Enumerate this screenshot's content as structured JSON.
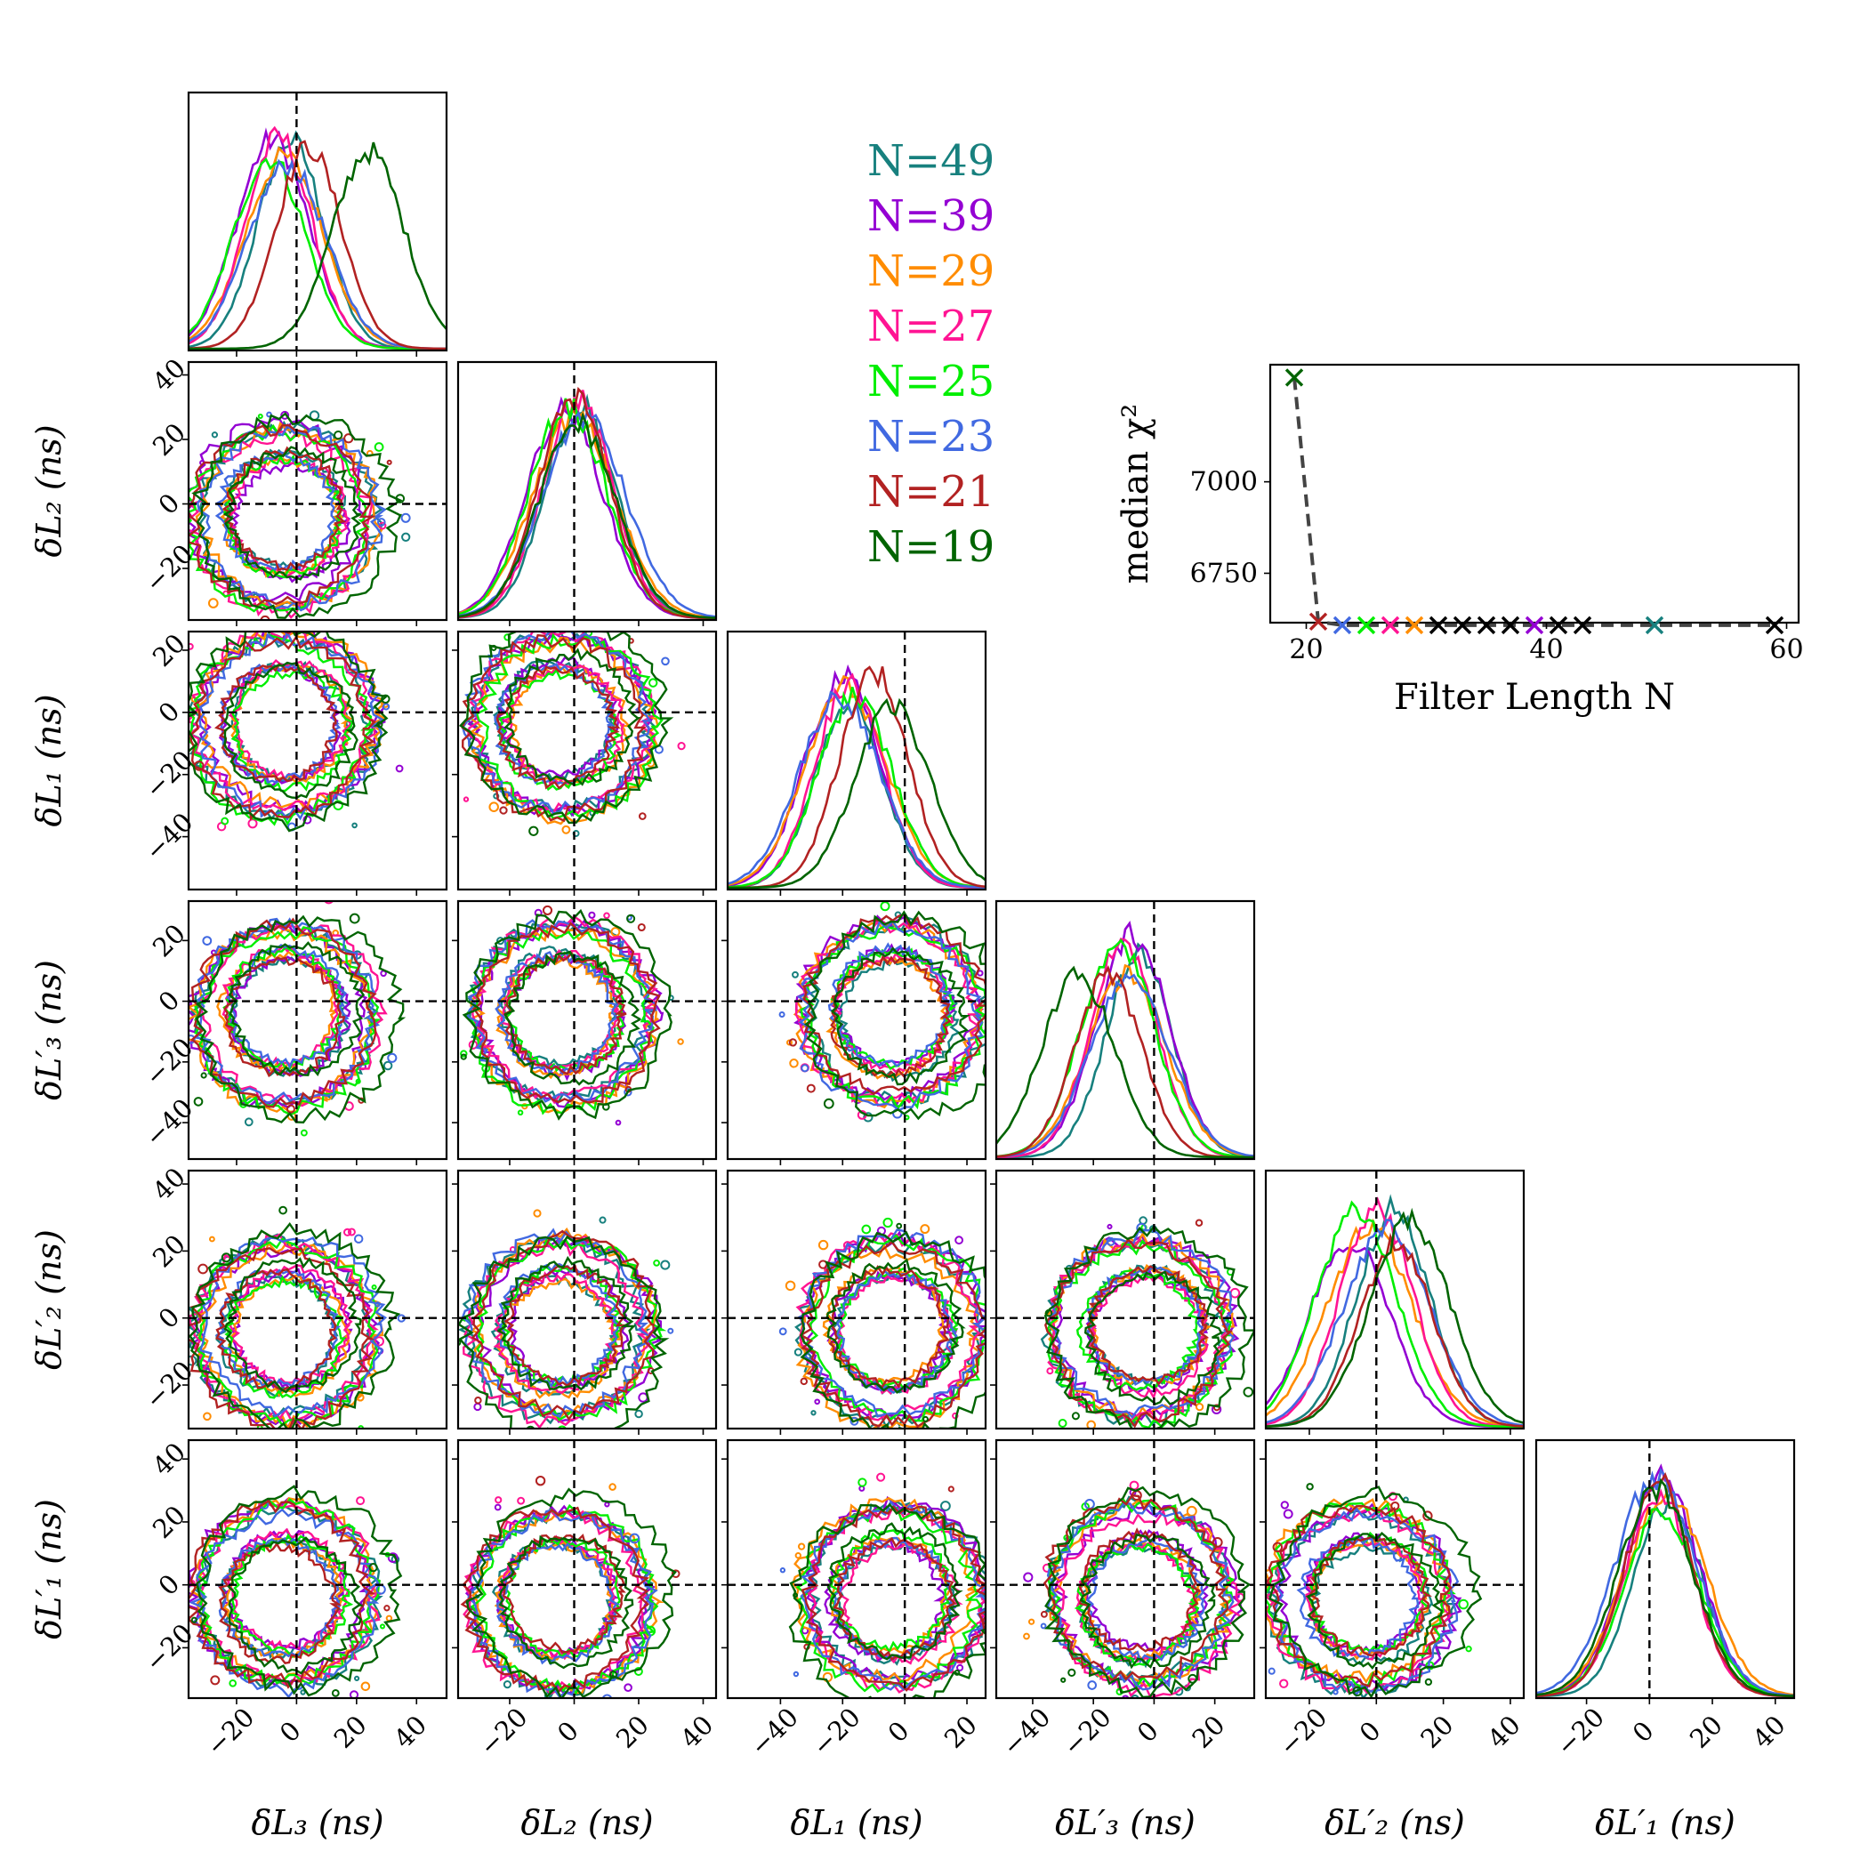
{
  "chart_data": [
    {
      "type": "corner",
      "parameters": [
        "δL3",
        "δL2",
        "δL1",
        "δL'3",
        "δL'2",
        "δL'1"
      ],
      "axis_labels": [
        "δL₃ (ns)",
        "δL₂ (ns)",
        "δL₁ (ns)",
        "δL′₃ (ns)",
        "δL′₂ (ns)",
        "δL′₁ (ns)"
      ],
      "ranges": [
        [
          -36,
          50
        ],
        [
          -36,
          44
        ],
        [
          -57,
          26
        ],
        [
          -52,
          33
        ],
        [
          -33,
          44
        ],
        [
          -36,
          46
        ]
      ],
      "ticks": [
        [
          -20,
          0,
          20,
          40
        ],
        [
          -20,
          0,
          20,
          40
        ],
        [
          -40,
          -20,
          0,
          20
        ],
        [
          -40,
          -20,
          0,
          20
        ],
        [
          -20,
          0,
          20,
          40
        ],
        [
          -20,
          0,
          20,
          40
        ]
      ],
      "truth": [
        0,
        0,
        0,
        0,
        0,
        0
      ],
      "series": [
        {
          "name": "N=49",
          "color": "#17807e"
        },
        {
          "name": "N=39",
          "color": "#9400d3"
        },
        {
          "name": "N=29",
          "color": "#ff8c00"
        },
        {
          "name": "N=27",
          "color": "#ff1493"
        },
        {
          "name": "N=25",
          "color": "#00ee00"
        },
        {
          "name": "N=23",
          "color": "#4169e1"
        },
        {
          "name": "N=21",
          "color": "#b22222"
        },
        {
          "name": "N=19",
          "color": "#006400"
        }
      ],
      "marginal_peaks": [
        [
          -2,
          -8,
          -4,
          -6,
          -9,
          -3,
          4,
          24
        ],
        [
          2,
          -3,
          0,
          1,
          -2,
          3,
          0,
          1
        ],
        [
          -18,
          -20,
          -19,
          -18,
          -16,
          -21,
          -10,
          -4
        ],
        [
          -5,
          -7,
          -9,
          -10,
          -12,
          -8,
          -15,
          -25
        ],
        [
          5,
          -8,
          -2,
          0,
          -6,
          3,
          6,
          10
        ],
        [
          6,
          4,
          5,
          3,
          4,
          2,
          3,
          2
        ]
      ]
    },
    {
      "type": "scatter",
      "xlabel": "Filter Length N",
      "ylabel": "median χ²",
      "xlim": [
        17,
        61
      ],
      "ylim": [
        6615,
        7320
      ],
      "xticks": [
        20,
        40,
        60
      ],
      "yticks": [
        6750,
        7000
      ],
      "points": [
        {
          "x": 19,
          "y": 7285,
          "color": "#006400"
        },
        {
          "x": 21,
          "y": 6618,
          "color": "#b22222"
        },
        {
          "x": 23,
          "y": 6608,
          "color": "#4169e1"
        },
        {
          "x": 25,
          "y": 6608,
          "color": "#00ee00"
        },
        {
          "x": 27,
          "y": 6608,
          "color": "#ff1493"
        },
        {
          "x": 29,
          "y": 6608,
          "color": "#ff8c00"
        },
        {
          "x": 31,
          "y": 6608,
          "color": "#000000"
        },
        {
          "x": 33,
          "y": 6608,
          "color": "#000000"
        },
        {
          "x": 35,
          "y": 6608,
          "color": "#000000"
        },
        {
          "x": 37,
          "y": 6608,
          "color": "#000000"
        },
        {
          "x": 39,
          "y": 6608,
          "color": "#9400d3"
        },
        {
          "x": 41,
          "y": 6608,
          "color": "#000000"
        },
        {
          "x": 43,
          "y": 6608,
          "color": "#000000"
        },
        {
          "x": 49,
          "y": 6608,
          "color": "#17807e"
        },
        {
          "x": 59,
          "y": 6608,
          "color": "#000000"
        }
      ]
    }
  ]
}
